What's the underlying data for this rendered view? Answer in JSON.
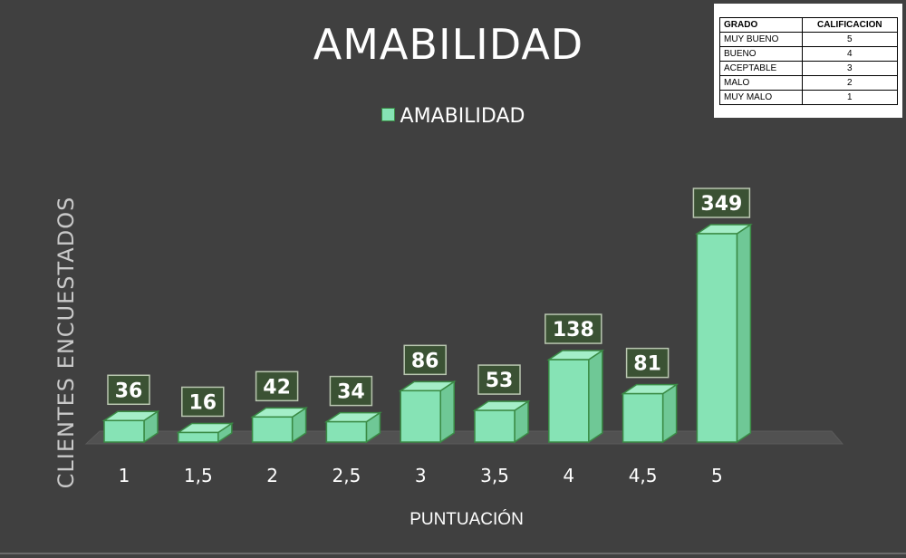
{
  "chart_data": {
    "type": "bar",
    "title": "AMABILIDAD",
    "xlabel": "PUNTUACIÓN",
    "ylabel": "CLIENTES ENCUESTADOS",
    "legend": {
      "position": "top",
      "entries": [
        "AMABILIDAD"
      ]
    },
    "categories": [
      "1",
      "1,5",
      "2",
      "2,5",
      "3",
      "3,5",
      "4",
      "4,5",
      "5"
    ],
    "series": [
      {
        "name": "AMABILIDAD",
        "values": [
          36,
          16,
          42,
          34,
          86,
          53,
          138,
          81,
          349
        ]
      }
    ],
    "data_labels": [
      "36",
      "16",
      "42",
      "34",
      "86",
      "53",
      "138",
      "81",
      "349"
    ],
    "ylim": [
      0,
      349
    ],
    "grid": false,
    "style": "3d-column",
    "colors": {
      "bar": "#86e3b5",
      "bar_edge": "#3a8b45",
      "label_bg": "#3b5234",
      "background": "#404040"
    }
  },
  "rating_table": {
    "headers": [
      "GRADO",
      "CALIFICACION"
    ],
    "rows": [
      [
        "MUY BUENO",
        "5"
      ],
      [
        "BUENO",
        "4"
      ],
      [
        "ACEPTABLE",
        "3"
      ],
      [
        "MALO",
        "2"
      ],
      [
        "MUY MALO",
        "1"
      ]
    ]
  }
}
